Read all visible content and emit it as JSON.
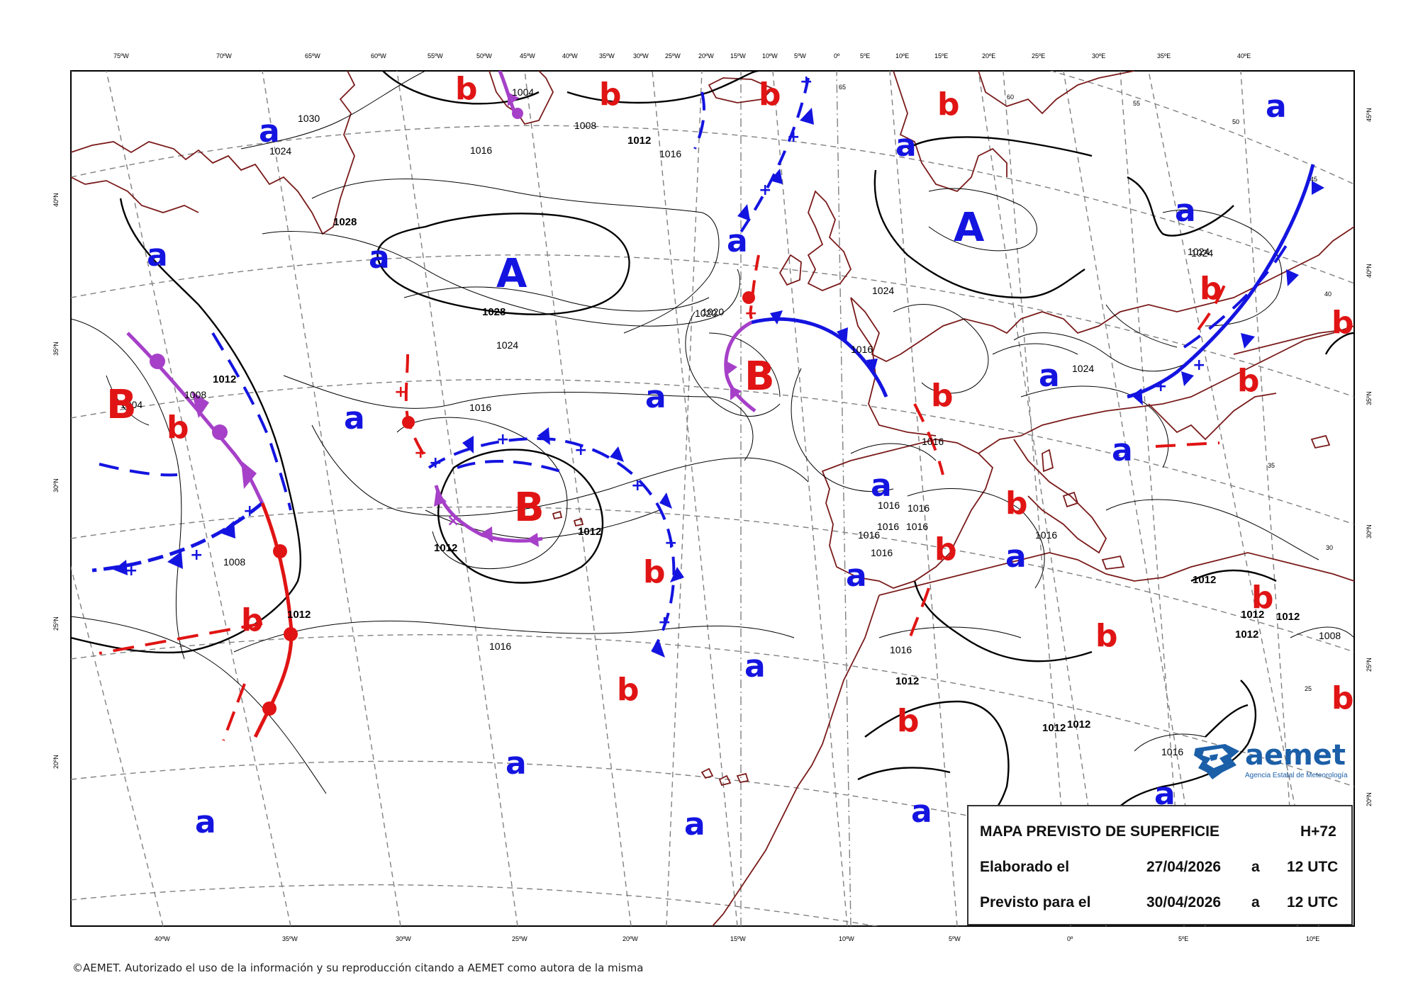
{
  "map": {
    "top_lon_labels": [
      "75ºW",
      "70ºW",
      "65ºW",
      "60ºW",
      "55ºW",
      "50ºW",
      "45ºW",
      "40ºW",
      "35ºW",
      "30ºW",
      "25ºW",
      "20ºW",
      "15ºW",
      "10ºW",
      "5ºW",
      "0º",
      "5ºE",
      "10ºE",
      "15ºE",
      "20ºE",
      "25ºE",
      "30ºE",
      "35ºE",
      "40ºE"
    ],
    "bottom_lon_labels": [
      "40ºW",
      "35ºW",
      "30ºW",
      "25ºW",
      "20ºW",
      "15ºW",
      "10ºW",
      "5ºW",
      "0º",
      "5ºE",
      "10ºE"
    ],
    "left_lat_labels": [
      "40ºN",
      "35ºN",
      "30ºN",
      "25ºN",
      "20ºN"
    ],
    "right_lat_labels": [
      "45ºN",
      "40ºN",
      "35ºN",
      "30ºN",
      "25ºN",
      "20ºN"
    ],
    "isobar_labels": [
      "1030",
      "1024",
      "1028",
      "1028",
      "1024",
      "1020",
      "1016",
      "1012",
      "1016",
      "1008",
      "1004",
      "1012",
      "1008",
      "1012",
      "1016",
      "1016",
      "1012",
      "1008",
      "1004",
      "1012",
      "1016",
      "1024",
      "1024",
      "1020",
      "1016",
      "1016",
      "1016",
      "1016",
      "1016",
      "1016",
      "1016",
      "1016",
      "1012",
      "1012",
      "1012",
      "1012",
      "1008",
      "1016",
      "1012",
      "1012",
      "1016",
      "1024",
      "1024",
      "1012"
    ],
    "grid_value_labels": [
      "65",
      "60",
      "55",
      "50",
      "45",
      "40",
      "35",
      "30",
      "25"
    ],
    "highs": [
      "A",
      "A",
      "A"
    ],
    "lows": [
      "B",
      "B",
      "B",
      "B"
    ],
    "rel_high_label": "a",
    "rel_low_label": "b"
  },
  "info_box": {
    "title": "MAPA PREVISTO DE SUPERFICIE",
    "hplus": "H+72",
    "elab_label": "Elaborado el",
    "elab_date": "27/04/2026",
    "elab_a": "a",
    "elab_time": "12 UTC",
    "prev_label": "Previsto para el",
    "prev_date": "30/04/2026",
    "prev_a": "a",
    "prev_time": "12 UTC"
  },
  "logo": {
    "word": "aemet",
    "subtitle": "Agencia Estatal de Meteorología"
  },
  "copyright": "©AEMET. Autorizado el uso de la información y su reproducción citando a AEMET como autora de la misma",
  "colors": {
    "high": "#1414e0",
    "low": "#e01414",
    "occluded": "#a640c8",
    "coast": "#7a1a1a",
    "isobar": "#000000",
    "grid": "#7a7a7a"
  }
}
